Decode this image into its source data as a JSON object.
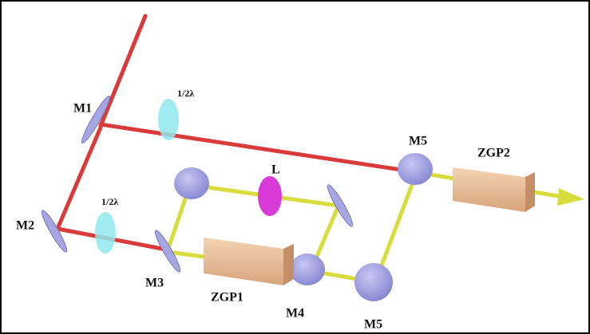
{
  "labels": {
    "wave_plate_top": "1/2λ",
    "m1": "M1",
    "m5_top": "M5",
    "zgp2": "ZGP2",
    "lens": "L",
    "m2": "M2",
    "wave_plate_bottom": "1/2λ",
    "m3": "M3",
    "zgp1": "ZGP1",
    "m4": "M4",
    "m5_bottom": "M5"
  }
}
